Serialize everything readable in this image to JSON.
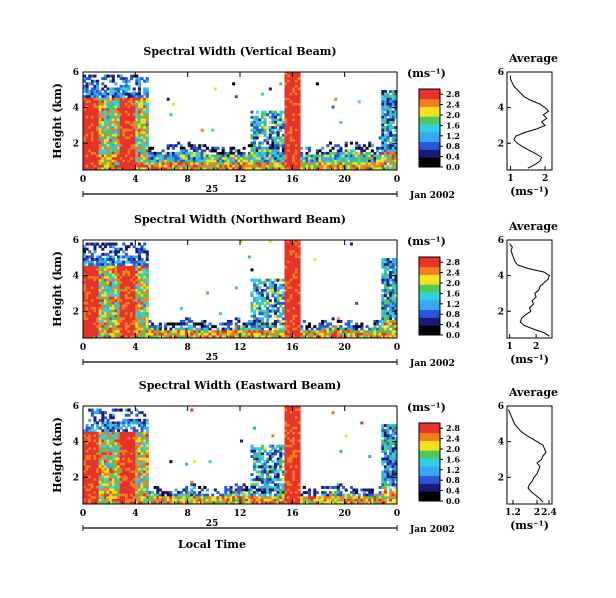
{
  "figure": {
    "x_axis_label": "Local Time",
    "date_label": "Jan 2002",
    "day_label": "25",
    "units_label": "(ms⁻¹)",
    "colors": {
      "red": "#e8322a",
      "orange": "#f57f20",
      "yellow": "#f5e11c",
      "green": "#4dc85a",
      "cyan": "#2fd1e6",
      "lightblue": "#35a9f2",
      "blue": "#2b56d9",
      "navy": "#1a1a7a",
      "black": "#000000"
    }
  },
  "chart_data": [
    {
      "type": "heatmap",
      "title": "Spectral Width (Vertical Beam)",
      "ylabel": "Height (km)",
      "x_ticks": [
        "0",
        "4",
        "8",
        "12",
        "16",
        "20",
        "0"
      ],
      "y_ticks": [
        "2",
        "4",
        "6"
      ],
      "xlim": [
        0,
        24
      ],
      "ylim": [
        0.5,
        6.0
      ],
      "colorbar": {
        "ticks": [
          "0.0",
          "0.4",
          "0.8",
          "1.2",
          "1.6",
          "2.0",
          "2.4",
          "2.8"
        ],
        "range": [
          0.0,
          3.0
        ]
      },
      "average": {
        "title": "Average",
        "xlabel": "(ms⁻¹)",
        "x_ticks": [
          "1",
          "2"
        ],
        "y_ticks": [
          "2",
          "4",
          "6"
        ],
        "xlim": [
          0.9,
          2.2
        ],
        "profile": [
          [
            0.6,
            1.5
          ],
          [
            0.8,
            1.7
          ],
          [
            1.0,
            1.85
          ],
          [
            1.2,
            1.9
          ],
          [
            1.4,
            1.75
          ],
          [
            1.6,
            1.55
          ],
          [
            1.8,
            1.35
          ],
          [
            2.0,
            1.2
          ],
          [
            2.2,
            1.1
          ],
          [
            2.4,
            1.15
          ],
          [
            2.6,
            1.4
          ],
          [
            2.8,
            1.75
          ],
          [
            3.0,
            2.0
          ],
          [
            3.2,
            1.9
          ],
          [
            3.4,
            2.05
          ],
          [
            3.6,
            1.95
          ],
          [
            3.8,
            2.1
          ],
          [
            4.0,
            2.0
          ],
          [
            4.2,
            1.85
          ],
          [
            4.4,
            1.6
          ],
          [
            4.6,
            1.4
          ],
          [
            4.8,
            1.3
          ],
          [
            5.0,
            1.2
          ],
          [
            5.2,
            1.1
          ],
          [
            5.4,
            1.05
          ],
          [
            5.6,
            1.0
          ],
          [
            5.8,
            1.0
          ]
        ]
      }
    },
    {
      "type": "heatmap",
      "title": "Spectral Width (Northward Beam)",
      "ylabel": "Height (km)",
      "x_ticks": [
        "0",
        "4",
        "8",
        "12",
        "16",
        "20",
        "0"
      ],
      "y_ticks": [
        "2",
        "4",
        "6"
      ],
      "xlim": [
        0,
        24
      ],
      "ylim": [
        0.5,
        6.0
      ],
      "colorbar": {
        "ticks": [
          "0.0",
          "0.4",
          "0.8",
          "1.2",
          "1.6",
          "2.0",
          "2.4",
          "2.8"
        ],
        "range": [
          0.0,
          3.0
        ]
      },
      "average": {
        "title": "Average",
        "xlabel": "(ms⁻¹)",
        "x_ticks": [
          "1",
          "2"
        ],
        "y_ticks": [
          "2",
          "4",
          "6"
        ],
        "xlim": [
          0.9,
          2.6
        ],
        "profile": [
          [
            0.6,
            2.5
          ],
          [
            0.8,
            2.3
          ],
          [
            1.0,
            1.9
          ],
          [
            1.2,
            1.55
          ],
          [
            1.4,
            1.4
          ],
          [
            1.6,
            1.45
          ],
          [
            1.8,
            1.6
          ],
          [
            2.0,
            1.8
          ],
          [
            2.2,
            1.75
          ],
          [
            2.4,
            1.9
          ],
          [
            2.6,
            1.85
          ],
          [
            2.8,
            2.0
          ],
          [
            3.0,
            1.95
          ],
          [
            3.2,
            2.1
          ],
          [
            3.4,
            2.15
          ],
          [
            3.6,
            2.3
          ],
          [
            3.8,
            2.45
          ],
          [
            4.0,
            2.5
          ],
          [
            4.2,
            2.3
          ],
          [
            4.4,
            1.7
          ],
          [
            4.6,
            1.3
          ],
          [
            4.8,
            1.2
          ],
          [
            5.0,
            1.15
          ],
          [
            5.2,
            1.1
          ],
          [
            5.4,
            1.05
          ],
          [
            5.6,
            1.1
          ],
          [
            5.8,
            1.0
          ]
        ]
      }
    },
    {
      "type": "heatmap",
      "title": "Spectral Width (Eastward Beam)",
      "ylabel": "Height (km)",
      "x_ticks": [
        "0",
        "4",
        "8",
        "12",
        "16",
        "20",
        "0"
      ],
      "y_ticks": [
        "2",
        "4",
        "6"
      ],
      "xlim": [
        0,
        24
      ],
      "ylim": [
        0.5,
        6.0
      ],
      "colorbar": {
        "ticks": [
          "0.0",
          "0.4",
          "0.8",
          "1.2",
          "1.6",
          "2.0",
          "2.4",
          "2.8"
        ],
        "range": [
          0.0,
          3.0
        ]
      },
      "average": {
        "title": "Average",
        "xlabel": "(ms⁻¹)",
        "x_ticks": [
          "1.2",
          "2",
          "2.4"
        ],
        "y_ticks": [
          "2",
          "4",
          "6"
        ],
        "xlim": [
          1.0,
          2.5
        ],
        "profile": [
          [
            0.6,
            2.2
          ],
          [
            0.8,
            2.1
          ],
          [
            1.0,
            1.95
          ],
          [
            1.2,
            1.8
          ],
          [
            1.4,
            1.7
          ],
          [
            1.6,
            1.75
          ],
          [
            1.8,
            1.85
          ],
          [
            2.0,
            1.9
          ],
          [
            2.2,
            2.0
          ],
          [
            2.4,
            2.05
          ],
          [
            2.6,
            2.1
          ],
          [
            2.8,
            2.0
          ],
          [
            3.0,
            2.15
          ],
          [
            3.2,
            2.2
          ],
          [
            3.4,
            2.3
          ],
          [
            3.6,
            2.25
          ],
          [
            3.8,
            2.2
          ],
          [
            4.0,
            2.0
          ],
          [
            4.2,
            1.8
          ],
          [
            4.4,
            1.6
          ],
          [
            4.6,
            1.45
          ],
          [
            4.8,
            1.35
          ],
          [
            5.0,
            1.25
          ],
          [
            5.2,
            1.2
          ],
          [
            5.4,
            1.15
          ],
          [
            5.6,
            1.1
          ],
          [
            5.8,
            1.05
          ]
        ]
      }
    }
  ]
}
